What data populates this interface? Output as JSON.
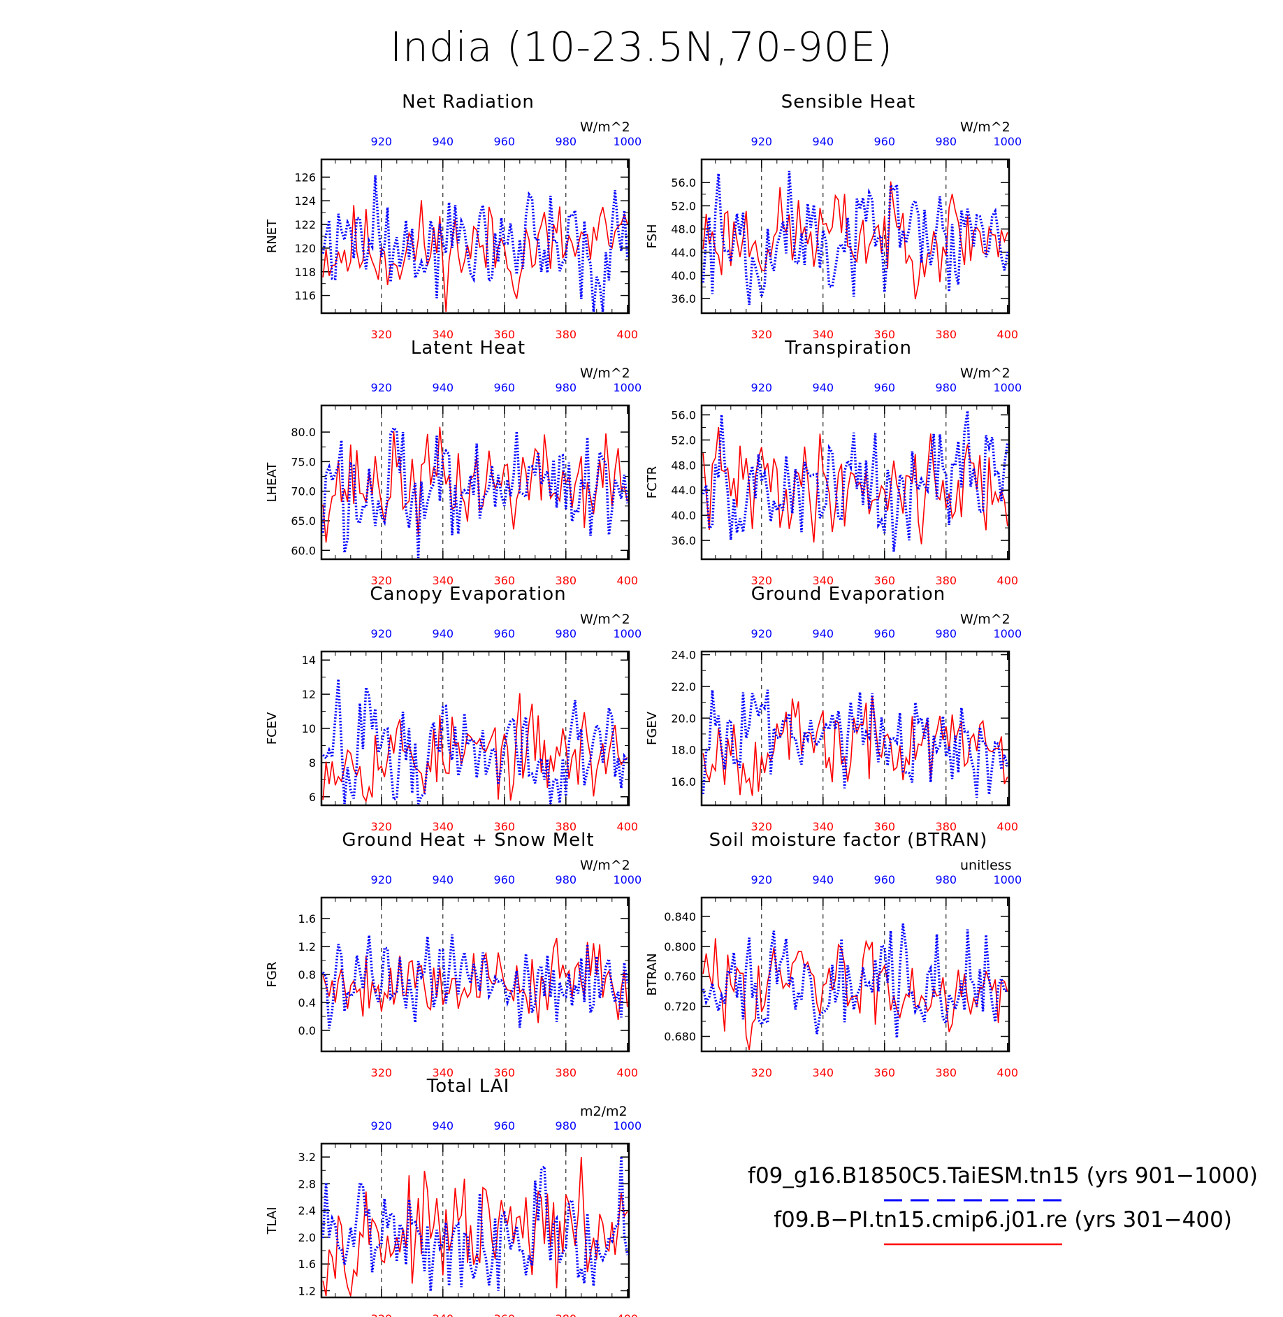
{
  "title": "India (10-23.5N,70-90E)",
  "colors": {
    "red": "#ff0000",
    "blue": "#0000ff",
    "frame": "#000000"
  },
  "axes": {
    "bottom_ticks": [
      "320",
      "340",
      "360",
      "380",
      "400"
    ],
    "top_ticks": [
      "920",
      "940",
      "960",
      "980",
      "1000"
    ],
    "bottom_range": [
      301,
      400
    ],
    "top_range": [
      901,
      1000
    ]
  },
  "legend": {
    "blue_label": "f09_g16.B1850C5.TaiESM.tn15 (yrs 901−1000)",
    "red_label": "f09.B−PI.tn15.cmip6.j01.re (yrs 301−400)"
  },
  "chart_data": [
    {
      "type": "line",
      "title": "Net Radiation",
      "units": "W/m^2",
      "ylabel": "RNET",
      "yticks": [
        "126",
        "124",
        "122",
        "120",
        "118",
        "116"
      ],
      "ylim": [
        114.5,
        127.5
      ],
      "yt": [
        126,
        124,
        122,
        120,
        118,
        116
      ],
      "mean": 120,
      "amp": 2.3,
      "seed": 11
    },
    {
      "type": "line",
      "title": "Sensible Heat",
      "units": "W/m^2",
      "ylabel": "FSH",
      "yticks": [
        "56.0",
        "52.0",
        "48.0",
        "44.0",
        "40.0",
        "36.0"
      ],
      "ylim": [
        33.5,
        60.0
      ],
      "yt": [
        56,
        52,
        48,
        44,
        40,
        36
      ],
      "mean": 47,
      "amp": 4.5,
      "seed": 23
    },
    {
      "type": "line",
      "title": "Latent Heat",
      "units": "W/m^2",
      "ylabel": "LHEAT",
      "yticks": [
        "80.0",
        "75.0",
        "70.0",
        "65.0",
        "60.0"
      ],
      "ylim": [
        58.5,
        84.5
      ],
      "yt": [
        80,
        75,
        70,
        65,
        60
      ],
      "mean": 71.5,
      "amp": 4.8,
      "seed": 37
    },
    {
      "type": "line",
      "title": "Transpiration",
      "units": "W/m^2",
      "ylabel": "FCTR",
      "yticks": [
        "56.0",
        "52.0",
        "48.0",
        "44.0",
        "40.0",
        "36.0"
      ],
      "ylim": [
        33.0,
        57.5
      ],
      "yt": [
        56,
        52,
        48,
        44,
        40,
        36
      ],
      "mean": 45,
      "amp": 4.5,
      "seed": 41
    },
    {
      "type": "line",
      "title": "Canopy Evaporation",
      "units": "W/m^2",
      "ylabel": "FCEV",
      "yticks": [
        "14",
        "12",
        "10",
        "8",
        "6"
      ],
      "ylim": [
        5.5,
        14.5
      ],
      "yt": [
        14,
        12,
        10,
        8,
        6
      ],
      "mean": 8.5,
      "amp": 1.5,
      "seed": 53
    },
    {
      "type": "line",
      "title": "Ground Evaporation",
      "units": "W/m^2",
      "ylabel": "FGEV",
      "yticks": [
        "24.0",
        "22.0",
        "20.0",
        "18.0",
        "16.0"
      ],
      "ylim": [
        14.5,
        24.2
      ],
      "yt": [
        24,
        22,
        20,
        18,
        16
      ],
      "mean": 18.3,
      "amp": 1.6,
      "seed": 67
    },
    {
      "type": "line",
      "title": "Ground Heat + Snow Melt",
      "units": "W/m^2",
      "ylabel": "FGR",
      "yticks": [
        "1.6",
        "1.2",
        "0.8",
        "0.4",
        "0.0"
      ],
      "ylim": [
        -0.3,
        1.9
      ],
      "yt": [
        1.6,
        1.2,
        0.8,
        0.4,
        0.0
      ],
      "mean": 0.72,
      "amp": 0.32,
      "seed": 79
    },
    {
      "type": "line",
      "title": "Soil moisture factor (BTRAN)",
      "units": "unitless",
      "ylabel": "BTRAN",
      "yticks": [
        "0.840",
        "0.800",
        "0.760",
        "0.720",
        "0.680"
      ],
      "ylim": [
        0.66,
        0.865
      ],
      "yt": [
        0.84,
        0.8,
        0.76,
        0.72,
        0.68
      ],
      "mean": 0.75,
      "amp": 0.035,
      "seed": 83
    },
    {
      "type": "line",
      "title": "Total LAI",
      "units": "m2/m2",
      "ylabel": "TLAI",
      "yticks": [
        "3.2",
        "2.8",
        "2.4",
        "2.0",
        "1.6",
        "1.2"
      ],
      "ylim": [
        1.1,
        3.4
      ],
      "yt": [
        3.2,
        2.8,
        2.4,
        2.0,
        1.6,
        1.2
      ],
      "mean": 2.05,
      "amp": 0.45,
      "seed": 97
    }
  ]
}
